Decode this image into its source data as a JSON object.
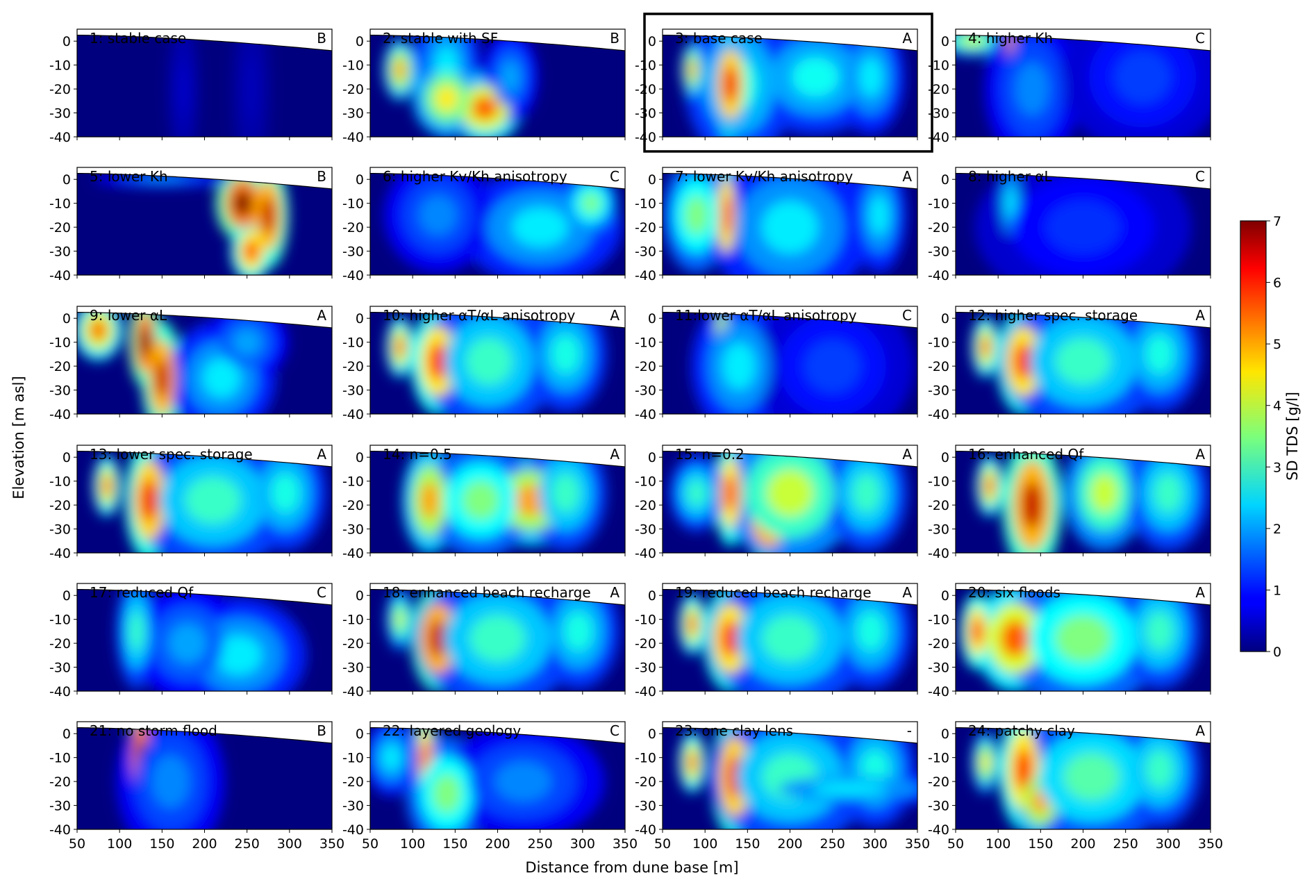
{
  "chart_data": {
    "type": "heatmap",
    "colormap": "jet",
    "highlighted_panel": 3,
    "xlabel": "Distance from dune base [m]",
    "ylabel": "Elevation [m asl]",
    "colorbar_label": "SD TDS [g/l]",
    "xlim": [
      50,
      350
    ],
    "ylim": [
      -40,
      5
    ],
    "xticks": [
      50,
      100,
      150,
      200,
      250,
      300,
      350
    ],
    "yticks": [
      0,
      -10,
      -20,
      -30,
      -40
    ],
    "colorbar_range": [
      0,
      7
    ],
    "colorbar_ticks": [
      0,
      1,
      2,
      3,
      4,
      5,
      6,
      7
    ],
    "panels": [
      {
        "id": 1,
        "title": "1: stable case",
        "class": "B",
        "blobs": [
          [
            175,
            -20,
            12,
            20,
            0.5
          ],
          [
            255,
            -20,
            15,
            25,
            0.4
          ]
        ]
      },
      {
        "id": 2,
        "title": "2: stable with SF",
        "class": "B",
        "blobs": [
          [
            140,
            -12,
            25,
            18,
            2.5
          ],
          [
            185,
            -28,
            28,
            9,
            5.5
          ],
          [
            140,
            -24,
            25,
            10,
            4.5
          ],
          [
            85,
            -12,
            12,
            8,
            5.0
          ],
          [
            215,
            -15,
            20,
            12,
            2.0
          ]
        ]
      },
      {
        "id": 3,
        "title": "3: base case",
        "class": "A",
        "blobs": [
          [
            140,
            -18,
            40,
            20,
            2.8
          ],
          [
            130,
            -18,
            15,
            14,
            6.2
          ],
          [
            85,
            -12,
            8,
            7,
            5.0
          ],
          [
            230,
            -15,
            50,
            15,
            2.7
          ],
          [
            295,
            -15,
            25,
            15,
            2.5
          ]
        ]
      },
      {
        "id": 4,
        "title": "4: higher Kh",
        "class": "C",
        "blobs": [
          [
            115,
            -8,
            4,
            12,
            6.5
          ],
          [
            70,
            0,
            25,
            4,
            4.0
          ],
          [
            140,
            -20,
            35,
            20,
            1.8
          ],
          [
            270,
            -15,
            60,
            20,
            1.3
          ]
        ]
      },
      {
        "id": 5,
        "title": "5: lower Kh",
        "class": "B",
        "blobs": [
          [
            245,
            -10,
            20,
            10,
            7.0
          ],
          [
            275,
            -15,
            15,
            14,
            6.5
          ],
          [
            255,
            -30,
            15,
            8,
            6.0
          ],
          [
            150,
            0,
            50,
            2,
            2.0
          ]
        ]
      },
      {
        "id": 6,
        "title": "6: higher Kv/Kh anisotropy",
        "class": "C",
        "blobs": [
          [
            250,
            -20,
            60,
            15,
            2.5
          ],
          [
            130,
            -15,
            40,
            15,
            1.8
          ],
          [
            310,
            -10,
            20,
            8,
            3.5
          ]
        ]
      },
      {
        "id": 7,
        "title": "7: lower Kv/Kh anisotropy",
        "class": "A",
        "blobs": [
          [
            125,
            -15,
            10,
            15,
            6.0
          ],
          [
            90,
            -15,
            25,
            15,
            3.5
          ],
          [
            200,
            -20,
            60,
            20,
            2.5
          ],
          [
            305,
            -15,
            20,
            15,
            2.5
          ]
        ]
      },
      {
        "id": 8,
        "title": "8: higher αL",
        "class": "C",
        "blobs": [
          [
            115,
            -10,
            10,
            12,
            2.5
          ],
          [
            200,
            -20,
            80,
            20,
            1.2
          ]
        ]
      },
      {
        "id": 9,
        "title": "9: lower αL",
        "class": "A",
        "blobs": [
          [
            130,
            -10,
            12,
            12,
            7.0
          ],
          [
            150,
            -25,
            15,
            15,
            6.5
          ],
          [
            75,
            -5,
            18,
            8,
            5.5
          ],
          [
            220,
            -25,
            40,
            15,
            2.5
          ],
          [
            250,
            -10,
            30,
            10,
            2.0
          ]
        ]
      },
      {
        "id": 10,
        "title": "10: higher αT/αL  anisotropy",
        "class": "A",
        "blobs": [
          [
            130,
            -18,
            20,
            14,
            6.0
          ],
          [
            85,
            -12,
            10,
            8,
            5.5
          ],
          [
            190,
            -18,
            50,
            18,
            3.0
          ],
          [
            280,
            -15,
            30,
            15,
            2.8
          ]
        ]
      },
      {
        "id": 11,
        "title": "11:lower αT/αL anisotropy",
        "class": "C",
        "blobs": [
          [
            120,
            -8,
            8,
            10,
            5.0
          ],
          [
            140,
            -20,
            35,
            18,
            2.5
          ],
          [
            250,
            -20,
            60,
            20,
            1.3
          ]
        ]
      },
      {
        "id": 12,
        "title": "12: higher spec. storage",
        "class": "A",
        "blobs": [
          [
            130,
            -18,
            20,
            14,
            6.0
          ],
          [
            85,
            -12,
            10,
            8,
            5.5
          ],
          [
            200,
            -18,
            60,
            18,
            3.0
          ],
          [
            290,
            -15,
            30,
            15,
            2.8
          ]
        ]
      },
      {
        "id": 13,
        "title": "13: lower spec. storage",
        "class": "A",
        "blobs": [
          [
            135,
            -18,
            18,
            16,
            6.2
          ],
          [
            85,
            -12,
            10,
            8,
            5.5
          ],
          [
            210,
            -18,
            60,
            18,
            3.0
          ],
          [
            295,
            -15,
            30,
            15,
            2.8
          ]
        ]
      },
      {
        "id": 14,
        "title": "14: n=0.5",
        "class": "A",
        "blobs": [
          [
            120,
            -18,
            20,
            14,
            5.0
          ],
          [
            240,
            -18,
            40,
            12,
            5.0
          ],
          [
            180,
            -18,
            40,
            15,
            3.5
          ],
          [
            280,
            -15,
            30,
            15,
            3.0
          ]
        ]
      },
      {
        "id": 15,
        "title": "15: n=0.2",
        "class": "A",
        "blobs": [
          [
            130,
            -15,
            12,
            14,
            6.0
          ],
          [
            175,
            -25,
            20,
            12,
            6.5
          ],
          [
            200,
            -15,
            50,
            18,
            4.0
          ],
          [
            290,
            -15,
            30,
            15,
            3.0
          ],
          [
            90,
            -15,
            20,
            10,
            3.0
          ]
        ]
      },
      {
        "id": 16,
        "title": "16: enhanced Qf",
        "class": "A",
        "blobs": [
          [
            140,
            -20,
            22,
            18,
            6.5
          ],
          [
            90,
            -12,
            10,
            8,
            5.5
          ],
          [
            225,
            -15,
            30,
            15,
            4.0
          ],
          [
            300,
            -15,
            30,
            15,
            3.0
          ]
        ]
      },
      {
        "id": 17,
        "title": "17: reduced Qf",
        "class": "C",
        "blobs": [
          [
            120,
            -15,
            15,
            15,
            3.0
          ],
          [
            240,
            -25,
            50,
            15,
            2.5
          ],
          [
            180,
            -20,
            40,
            15,
            2.0
          ]
        ]
      },
      {
        "id": 18,
        "title": "18: enhanced beach recharge",
        "class": "A",
        "blobs": [
          [
            130,
            -18,
            20,
            14,
            6.5
          ],
          [
            85,
            -10,
            10,
            8,
            4.0
          ],
          [
            200,
            -18,
            60,
            18,
            3.0
          ],
          [
            295,
            -15,
            30,
            15,
            2.8
          ]
        ]
      },
      {
        "id": 19,
        "title": "19: reduced beach recharge",
        "class": "A",
        "blobs": [
          [
            130,
            -18,
            20,
            14,
            6.0
          ],
          [
            85,
            -12,
            10,
            8,
            5.5
          ],
          [
            200,
            -18,
            60,
            18,
            3.0
          ],
          [
            295,
            -15,
            30,
            15,
            2.8
          ]
        ]
      },
      {
        "id": 20,
        "title": "20: six floods",
        "class": "A",
        "blobs": [
          [
            120,
            -18,
            30,
            14,
            5.5
          ],
          [
            75,
            -15,
            12,
            10,
            6.0
          ],
          [
            200,
            -18,
            60,
            18,
            3.5
          ],
          [
            290,
            -15,
            30,
            15,
            3.0
          ]
        ]
      },
      {
        "id": 21,
        "title": "21: no storm flood",
        "class": "B",
        "blobs": [
          [
            125,
            -10,
            10,
            15,
            7.0
          ],
          [
            160,
            -20,
            40,
            20,
            1.8
          ]
        ]
      },
      {
        "id": 22,
        "title": "22: layered geology",
        "class": "C",
        "blobs": [
          [
            115,
            -10,
            8,
            14,
            6.0
          ],
          [
            140,
            -25,
            30,
            15,
            3.5
          ],
          [
            75,
            -10,
            20,
            10,
            2.5
          ],
          [
            230,
            -20,
            60,
            15,
            1.8
          ]
        ]
      },
      {
        "id": 23,
        "title": "23: one clay lens",
        "class": "-",
        "blobs": [
          [
            135,
            -18,
            18,
            16,
            6.2
          ],
          [
            85,
            -12,
            10,
            8,
            5.5
          ],
          [
            200,
            -18,
            60,
            18,
            3.0
          ],
          [
            300,
            -15,
            30,
            15,
            2.8
          ],
          [
            270,
            -23,
            80,
            5,
            2.5
          ]
        ]
      },
      {
        "id": 24,
        "title": "24: patchy clay",
        "class": "A",
        "blobs": [
          [
            130,
            -15,
            18,
            16,
            6.0
          ],
          [
            150,
            -28,
            20,
            10,
            5.0
          ],
          [
            85,
            -12,
            10,
            8,
            4.5
          ],
          [
            210,
            -18,
            60,
            18,
            3.2
          ],
          [
            290,
            -15,
            30,
            15,
            3.0
          ]
        ]
      }
    ]
  }
}
